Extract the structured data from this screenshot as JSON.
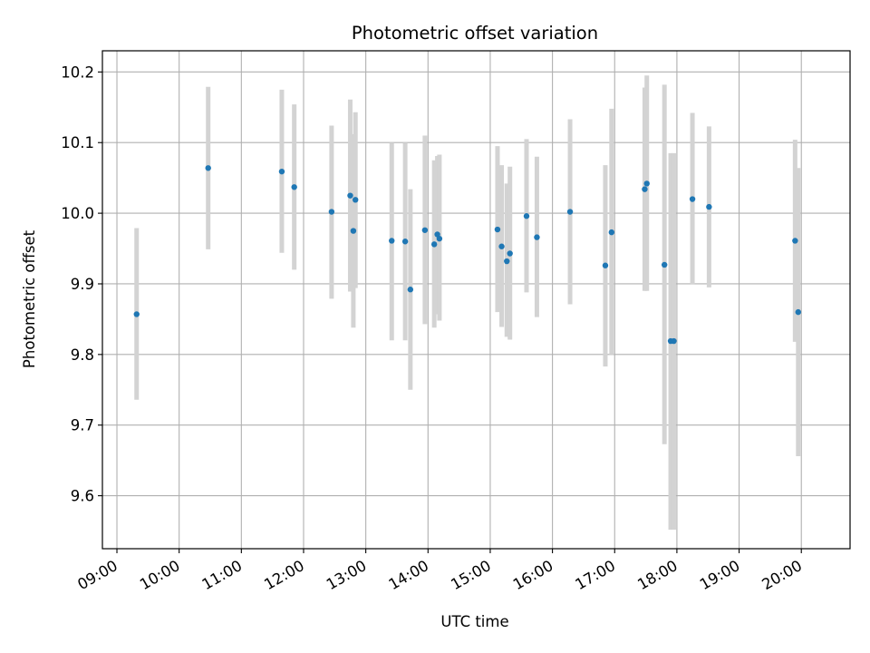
{
  "chart_data": {
    "type": "scatter",
    "title": "Photometric offset variation",
    "xlabel": "UTC time",
    "ylabel": "Photometric offset",
    "grid": true,
    "x_ticks": [
      "09:00",
      "10:00",
      "11:00",
      "12:00",
      "13:00",
      "14:00",
      "15:00",
      "16:00",
      "17:00",
      "18:00",
      "19:00",
      "20:00"
    ],
    "y_ticks": [
      "9.6",
      "9.7",
      "9.8",
      "9.9",
      "10.0",
      "10.1",
      "10.2"
    ],
    "x_range": [
      "08:46",
      "20:47"
    ],
    "ylim": [
      9.525,
      10.23
    ],
    "colors": {
      "points": "#1f77b4",
      "errorbars": "#d3d3d3",
      "grid": "#b0b0b0"
    },
    "series": [
      {
        "points": [
          {
            "x": "09:19",
            "y": 9.857,
            "ylo": 9.736,
            "yhi": 9.979
          },
          {
            "x": "10:28",
            "y": 10.064,
            "ylo": 9.949,
            "yhi": 10.179
          },
          {
            "x": "11:39",
            "y": 10.059,
            "ylo": 9.944,
            "yhi": 10.175
          },
          {
            "x": "11:51",
            "y": 10.037,
            "ylo": 9.92,
            "yhi": 10.154
          },
          {
            "x": "12:27",
            "y": 10.002,
            "ylo": 9.879,
            "yhi": 10.124
          },
          {
            "x": "12:45",
            "y": 10.025,
            "ylo": 9.889,
            "yhi": 10.161
          },
          {
            "x": "12:48",
            "y": 9.975,
            "ylo": 9.838,
            "yhi": 10.112
          },
          {
            "x": "12:50",
            "y": 10.019,
            "ylo": 9.894,
            "yhi": 10.143
          },
          {
            "x": "13:25",
            "y": 9.961,
            "ylo": 9.82,
            "yhi": 10.1
          },
          {
            "x": "13:38",
            "y": 9.96,
            "ylo": 9.82,
            "yhi": 10.1
          },
          {
            "x": "13:43",
            "y": 9.892,
            "ylo": 9.75,
            "yhi": 10.034
          },
          {
            "x": "13:57",
            "y": 9.976,
            "ylo": 9.843,
            "yhi": 10.11
          },
          {
            "x": "14:06",
            "y": 9.956,
            "ylo": 9.838,
            "yhi": 10.075
          },
          {
            "x": "14:09",
            "y": 9.97,
            "ylo": 9.857,
            "yhi": 10.081
          },
          {
            "x": "14:11",
            "y": 9.964,
            "ylo": 9.848,
            "yhi": 10.083
          },
          {
            "x": "15:07",
            "y": 9.977,
            "ylo": 9.86,
            "yhi": 10.095
          },
          {
            "x": "15:11",
            "y": 9.953,
            "ylo": 9.839,
            "yhi": 10.068
          },
          {
            "x": "15:16",
            "y": 9.932,
            "ylo": 9.825,
            "yhi": 10.042
          },
          {
            "x": "15:19",
            "y": 9.943,
            "ylo": 9.821,
            "yhi": 10.066
          },
          {
            "x": "15:35",
            "y": 9.996,
            "ylo": 9.888,
            "yhi": 10.105
          },
          {
            "x": "15:45",
            "y": 9.966,
            "ylo": 9.853,
            "yhi": 10.08
          },
          {
            "x": "16:17",
            "y": 10.002,
            "ylo": 9.871,
            "yhi": 10.133
          },
          {
            "x": "16:51",
            "y": 9.926,
            "ylo": 9.783,
            "yhi": 10.068
          },
          {
            "x": "16:57",
            "y": 9.973,
            "ylo": 9.8,
            "yhi": 10.148
          },
          {
            "x": "17:29",
            "y": 10.034,
            "ylo": 9.89,
            "yhi": 10.178
          },
          {
            "x": "17:31",
            "y": 10.042,
            "ylo": 9.89,
            "yhi": 10.195
          },
          {
            "x": "17:48",
            "y": 9.927,
            "ylo": 9.673,
            "yhi": 10.182
          },
          {
            "x": "17:54",
            "y": 9.819,
            "ylo": 9.552,
            "yhi": 10.085
          },
          {
            "x": "17:57",
            "y": 9.819,
            "ylo": 9.552,
            "yhi": 10.085
          },
          {
            "x": "18:15",
            "y": 10.02,
            "ylo": 9.899,
            "yhi": 10.142
          },
          {
            "x": "18:31",
            "y": 10.009,
            "ylo": 9.895,
            "yhi": 10.123
          },
          {
            "x": "19:54",
            "y": 9.961,
            "ylo": 9.818,
            "yhi": 10.104
          },
          {
            "x": "19:57",
            "y": 9.86,
            "ylo": 9.656,
            "yhi": 10.064
          }
        ]
      }
    ]
  }
}
